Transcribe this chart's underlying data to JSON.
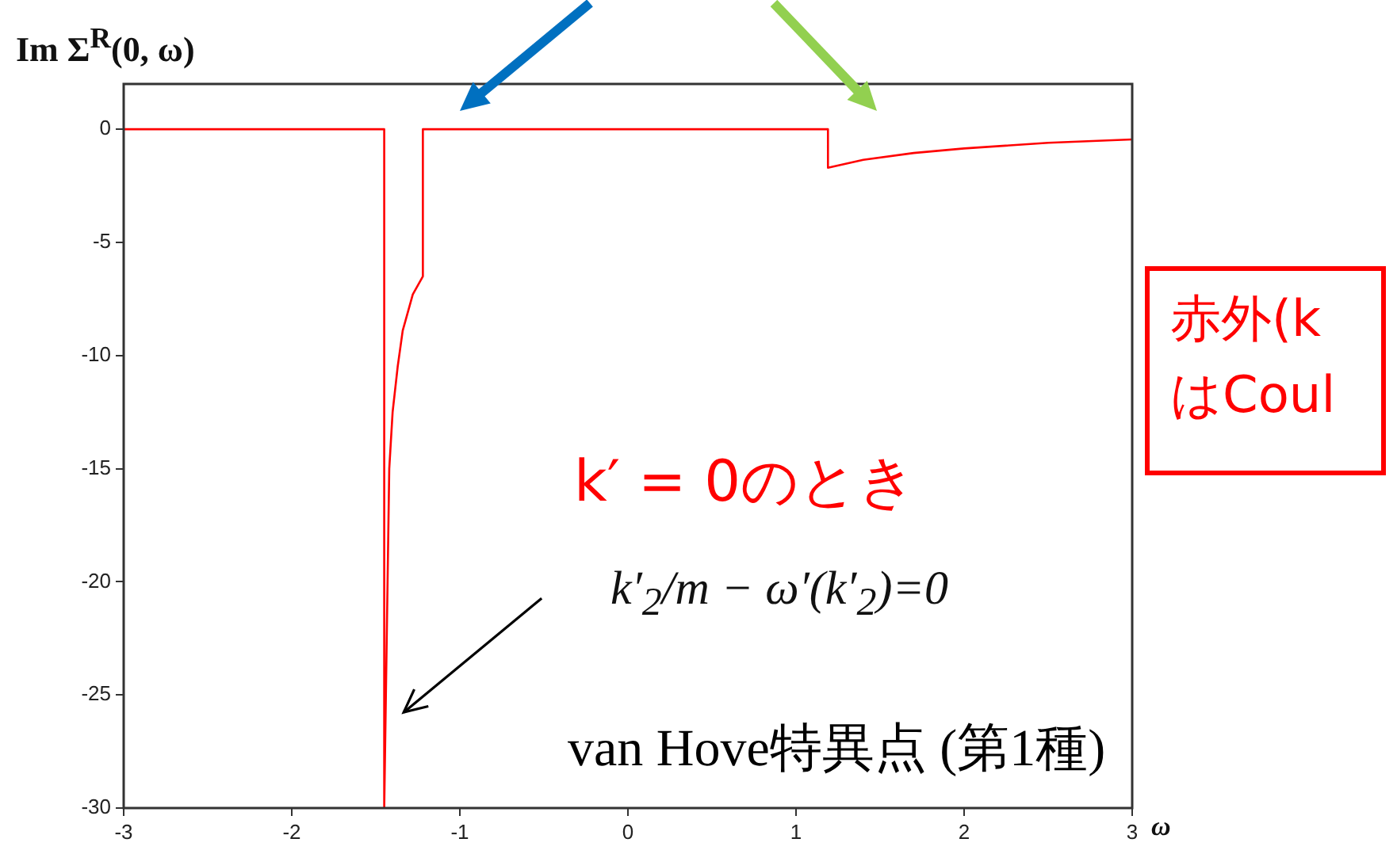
{
  "chart_data": {
    "type": "line",
    "ylabel": "Im Σ$^{R}$(0, ω)",
    "xlabel": "ω",
    "series": [
      {
        "color": "#ff0000",
        "x": [
          -3,
          -1.45,
          -1.45,
          -1.44,
          -1.43,
          -1.42,
          -1.4,
          -1.37,
          -1.34,
          -1.28,
          -1.22,
          -1.22,
          1.19,
          1.19,
          1.4,
          1.7,
          2.0,
          2.5,
          3
        ],
        "values": [
          0,
          0,
          -30,
          -25,
          -20,
          -15,
          -12.5,
          -10.5,
          -8.9,
          -7.3,
          -6.5,
          0,
          0,
          -1.7,
          -1.35,
          -1.05,
          -0.85,
          -0.6,
          -0.45
        ]
      }
    ],
    "xlim": [
      -3,
      3
    ],
    "xticks": [
      -3,
      -2,
      -1,
      0,
      1,
      2,
      3
    ],
    "ylim": [
      -30,
      2
    ],
    "yticks": [
      -30,
      -25,
      -20,
      -15,
      -10,
      -5,
      0
    ],
    "grid": false,
    "legend": false,
    "marker": "none",
    "line_style": "solid",
    "annotations": [
      "k′ = 0のとき",
      "k′$_{2}$/m − ω′(k′$_{2}$)=0",
      "van Hove特異点 (第1種)",
      "赤外(k",
      "はCoul"
    ]
  }
}
